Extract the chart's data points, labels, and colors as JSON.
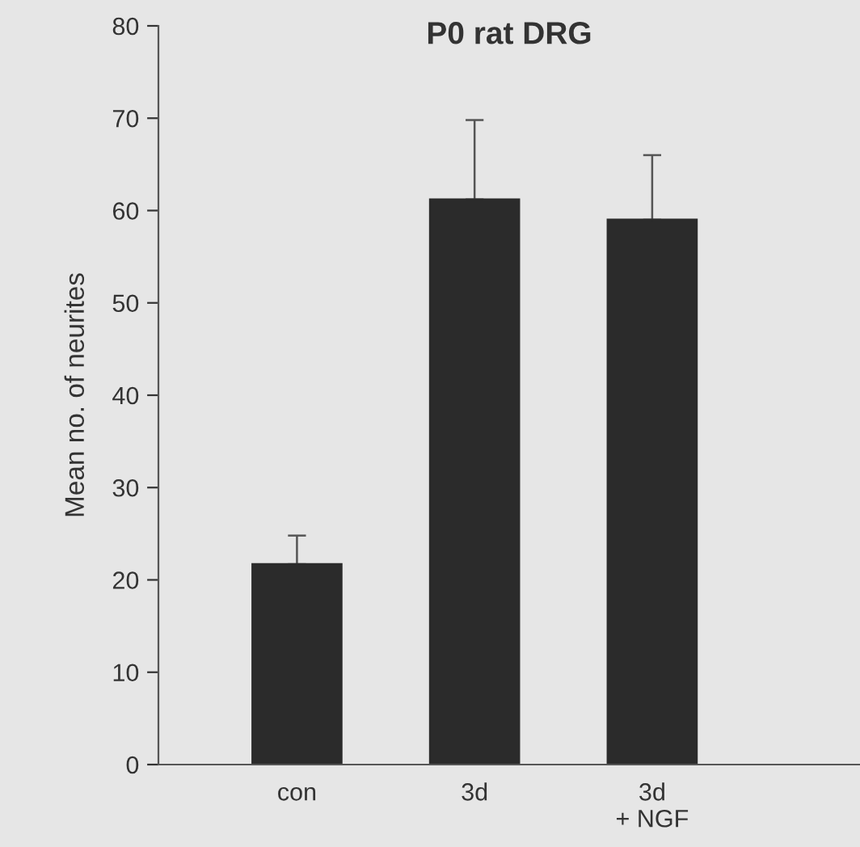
{
  "chart_data": {
    "type": "bar",
    "title": "P0 rat DRG",
    "ylabel": "Mean no. of neurites",
    "categories": [
      "con",
      "3d",
      "3d\n+ NGF"
    ],
    "values": [
      21.7,
      61.2,
      59.0
    ],
    "errors": [
      [
        21.7,
        24.8
      ],
      [
        61.2,
        69.8
      ],
      [
        59.0,
        66.0
      ]
    ],
    "color": "#2b2b2b",
    "ylim": [
      0,
      80
    ],
    "yticks": [
      0,
      10,
      20,
      30,
      40,
      50,
      60,
      70,
      80
    ],
    "grid": false,
    "legend": false
  }
}
